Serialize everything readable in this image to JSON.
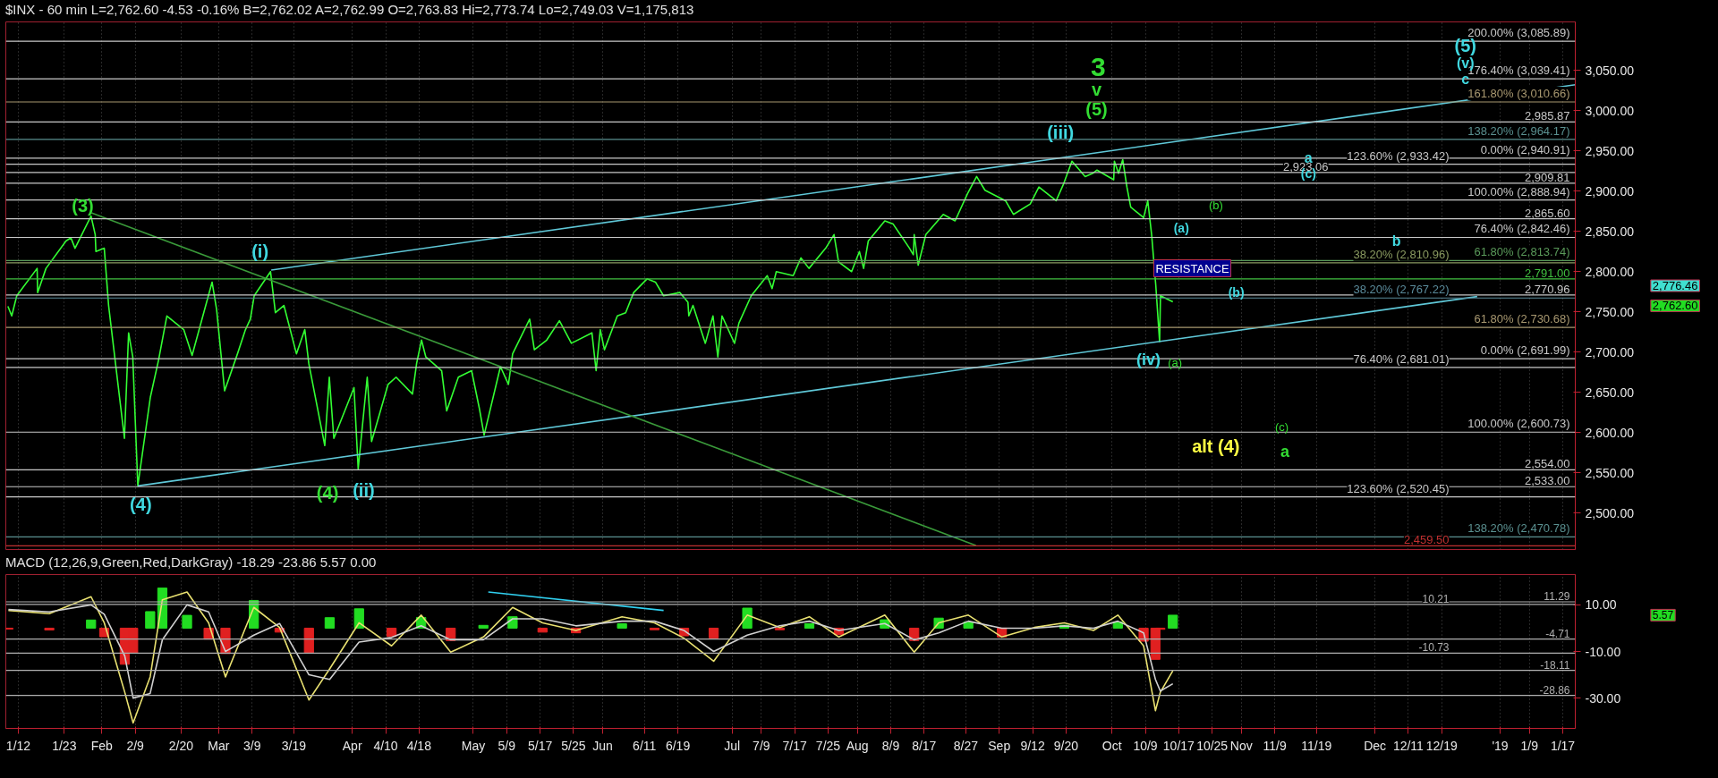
{
  "chart_data": [
    {
      "type": "line",
      "title": "$INX - 60 min  L=2,762.60  -4.53  -0.16%  B=2,762.02  A=2,762.99  O=2,763.83  Hi=2,773.74  Lo=2,749.03  V=1,175,813",
      "xlim": [
        "2018-01-09",
        "2019-01-20"
      ],
      "ylim": [
        2455,
        3110
      ],
      "xticks": [
        {
          "value": "2018-01-12",
          "label": null
        },
        {
          "value": "2018-01-23",
          "label": null
        },
        {
          "value": "2018-02-01",
          "label": null
        },
        {
          "value": "2018-02-09",
          "label": null
        },
        {
          "value": "2018-02-20",
          "label": null
        },
        {
          "value": "2018-03-01",
          "label": null
        },
        {
          "value": "2018-03-09",
          "label": null
        },
        {
          "value": "2018-03-19",
          "label": null
        },
        {
          "value": "2018-04-02",
          "label": null
        },
        {
          "value": "2018-04-10",
          "label": null
        },
        {
          "value": "2018-04-18",
          "label": null
        },
        {
          "value": "2018-05-01",
          "label": null
        },
        {
          "value": "2018-05-09",
          "label": null
        },
        {
          "value": "2018-05-17",
          "label": null
        },
        {
          "value": "2018-05-25",
          "label": null
        },
        {
          "value": "2018-06-01",
          "label": null
        },
        {
          "value": "2018-06-11",
          "label": null
        },
        {
          "value": "2018-06-19",
          "label": null
        },
        {
          "value": "2018-07-02",
          "label": null
        },
        {
          "value": "2018-07-09",
          "label": null
        },
        {
          "value": "2018-07-17",
          "label": null
        },
        {
          "value": "2018-07-25",
          "label": null
        },
        {
          "value": "2018-08-01",
          "label": null
        },
        {
          "value": "2018-08-09",
          "label": null
        },
        {
          "value": "2018-08-17",
          "label": null
        },
        {
          "value": "2018-08-27",
          "label": null
        },
        {
          "value": "2018-09-04",
          "label": null
        },
        {
          "value": "2018-09-12",
          "label": null
        },
        {
          "value": "2018-09-20",
          "label": null
        },
        {
          "value": "2018-10-01",
          "label": null
        },
        {
          "value": "2018-10-09",
          "label": null
        },
        {
          "value": "2018-10-17",
          "label": null
        },
        {
          "value": "2018-10-25",
          "label": null
        },
        {
          "value": "2018-11-01",
          "label": null
        },
        {
          "value": "2018-11-09",
          "label": null
        },
        {
          "value": "2018-11-19",
          "label": null
        },
        {
          "value": "2018-12-03",
          "label": null
        },
        {
          "value": "2018-12-11",
          "label": null
        },
        {
          "value": "2018-12-19",
          "label": null
        },
        {
          "value": "2019-01-02",
          "label": null
        },
        {
          "value": "2019-01-09",
          "label": null
        },
        {
          "value": "2019-01-17",
          "label": null
        }
      ],
      "yticks": [
        {
          "value": 2500,
          "label": "2,500.00"
        },
        {
          "value": 2550,
          "label": "2,550.00"
        },
        {
          "value": 2600,
          "label": "2,600.00"
        },
        {
          "value": 2650,
          "label": "2,650.00"
        },
        {
          "value": 2700,
          "label": "2,700.00"
        },
        {
          "value": 2750,
          "label": "2,750.00"
        },
        {
          "value": 2800,
          "label": "2,800.00"
        },
        {
          "value": 2850,
          "label": "2,850.00"
        },
        {
          "value": 2900,
          "label": "2,900.00"
        },
        {
          "value": 2950,
          "label": "2,950.00"
        },
        {
          "value": 3000,
          "label": "3,000.00"
        },
        {
          "value": 3050,
          "label": "3,050.00"
        }
      ],
      "tick_labels": "y",
      "grid": "x",
      "series": [
        {
          "color": "#33ff33",
          "x": [
            "2018-01-09T12:00",
            "2018-01-10T10:00",
            "2018-01-11T15:00",
            "2018-01-16T12:00",
            "2018-01-16T15:00",
            "2018-01-18T15:00",
            "2018-01-23T10:00",
            "2018-01-24T14:00",
            "2018-01-25T14:00",
            "2018-01-29T10:00",
            "2018-01-30T10:00",
            "2018-01-30T14:00",
            "2018-02-01T14:00",
            "2018-02-02T15:00",
            "2018-02-06T10:00",
            "2018-02-07T10:00",
            "2018-02-08T10:00",
            "2018-02-09T15:00",
            "2018-02-12T15:00",
            "2018-02-14T14:00",
            "2018-02-16T14:00",
            "2018-02-20T15:00",
            "2018-02-22T15:00",
            "2018-02-27T10:00",
            "2018-02-28T12:00",
            "2018-03-02T10:00",
            "2018-03-05T12:00",
            "2018-03-07T10:00",
            "2018-03-08T14:00",
            "2018-03-09T12:00",
            "2018-03-13T10:00",
            "2018-03-14T14:00",
            "2018-03-16T15:00",
            "2018-03-19T15:00",
            "2018-03-21T15:00",
            "2018-03-22T14:00",
            "2018-03-26T10:00",
            "2018-03-27T12:00",
            "2018-03-28T14:00",
            "2018-04-02T10:00",
            "2018-04-03T10:00",
            "2018-04-05T14:00",
            "2018-04-06T15:00",
            "2018-04-10T14:00",
            "2018-04-12T12:00",
            "2018-04-16T10:00",
            "2018-04-17T10:00",
            "2018-04-18T14:00",
            "2018-04-19T15:00",
            "2018-04-23T10:00",
            "2018-04-24T15:00",
            "2018-04-27T10:00",
            "2018-04-30T14:00",
            "2018-05-02T10:00",
            "2018-05-03T14:00",
            "2018-05-07T12:00",
            "2018-05-09T10:00",
            "2018-05-10T10:00",
            "2018-05-14T12:00",
            "2018-05-15T15:00",
            "2018-05-18T14:00",
            "2018-05-21T15:00",
            "2018-05-24T12:00",
            "2018-05-29T10:00",
            "2018-05-30T10:00",
            "2018-05-31T10:00",
            "2018-06-01T10:00",
            "2018-06-04T12:00",
            "2018-06-06T12:00",
            "2018-06-08T10:00",
            "2018-06-11T15:00",
            "2018-06-13T15:00",
            "2018-06-15T14:00",
            "2018-06-19T12:00",
            "2018-06-21T10:00",
            "2018-06-21T15:00",
            "2018-06-22T15:00",
            "2018-06-25T14:00",
            "2018-06-27T10:00",
            "2018-06-28T14:00",
            "2018-06-29T14:00",
            "2018-07-02T14:00",
            "2018-07-03T15:00",
            "2018-07-06T14:00",
            "2018-07-10T10:00",
            "2018-07-11T14:00",
            "2018-07-12T14:00",
            "2018-07-16T15:00",
            "2018-07-18T12:00",
            "2018-07-20T10:00",
            "2018-07-24T10:00",
            "2018-07-26T10:00",
            "2018-07-27T12:00",
            "2018-07-30T15:00",
            "2018-08-01T12:00",
            "2018-08-02T12:00",
            "2018-08-03T15:00",
            "2018-08-07T14:00",
            "2018-08-09T14:00",
            "2018-08-13T12:00",
            "2018-08-14T10:00",
            "2018-08-14T15:00",
            "2018-08-15T14:00",
            "2018-08-17T10:00",
            "2018-08-21T14:00",
            "2018-08-24T10:00",
            "2018-08-27T10:00",
            "2018-08-29T14:00",
            "2018-08-31T14:00",
            "2018-09-05T12:00",
            "2018-09-07T10:00",
            "2018-09-11T10:00",
            "2018-09-13T12:00",
            "2018-09-17T15:00",
            "2018-09-19T10:00",
            "2018-09-21T10:00",
            "2018-09-24T14:00",
            "2018-09-26T10:00",
            "2018-09-27T10:00",
            "2018-10-01T10:00",
            "2018-10-01T14:00",
            "2018-10-02T14:00",
            "2018-10-03T14:00",
            "2018-10-04T14:00",
            "2018-10-05T12:00",
            "2018-10-08T14:00",
            "2018-10-09T14:00",
            "2018-10-10T12:00",
            "2018-10-11T12:00",
            "2018-10-12T10:00",
            "2018-10-12T15:00",
            "2018-10-15T14:00"
          ],
          "values": [
            2757,
            2745,
            2770,
            2804,
            2774,
            2804,
            2838,
            2842,
            2829,
            2869,
            2846,
            2825,
            2829,
            2758,
            2593,
            2724,
            2694,
            2534,
            2644,
            2690,
            2745,
            2728,
            2696,
            2787,
            2753,
            2652,
            2698,
            2728,
            2741,
            2770,
            2800,
            2749,
            2758,
            2698,
            2728,
            2686,
            2584,
            2669,
            2593,
            2656,
            2555,
            2669,
            2589,
            2660,
            2669,
            2648,
            2686,
            2715,
            2694,
            2677,
            2627,
            2669,
            2677,
            2631,
            2597,
            2682,
            2660,
            2698,
            2741,
            2703,
            2715,
            2739,
            2711,
            2724,
            2677,
            2728,
            2703,
            2745,
            2749,
            2774,
            2791,
            2787,
            2770,
            2774,
            2762,
            2745,
            2758,
            2711,
            2745,
            2694,
            2745,
            2711,
            2736,
            2770,
            2795,
            2779,
            2800,
            2795,
            2817,
            2804,
            2829,
            2846,
            2812,
            2800,
            2825,
            2804,
            2838,
            2863,
            2859,
            2829,
            2821,
            2846,
            2808,
            2846,
            2871,
            2863,
            2897,
            2918,
            2901,
            2888,
            2871,
            2884,
            2905,
            2888,
            2909,
            2937,
            2918,
            2922,
            2926,
            2914,
            2937,
            2922,
            2939,
            2905,
            2880,
            2867,
            2888,
            2846,
            2783,
            2713,
            2770,
            2762.6
          ]
        },
        {
          "color": "#5fc8d8",
          "x": [
            "2018-02-09T15:00",
            "2018-12-27T12:00"
          ],
          "values": [
            2534,
            2769
          ]
        },
        {
          "color": "#5fc8d8",
          "x": [
            "2018-03-13T14:00",
            "2019-01-20"
          ],
          "values": [
            2802,
            3032
          ]
        },
        {
          "color": "#3a9a3a",
          "x": [
            "2018-01-29T12:00",
            "2018-08-29T10:00"
          ],
          "values": [
            2873,
            2460
          ]
        }
      ],
      "ref_lines": [
        {
          "axis": "y",
          "value": 3085.89,
          "label": "200.00% (3,085.89)",
          "color": "#c8c8c8"
        },
        {
          "axis": "y",
          "value": 3039.41,
          "label": "176.40% (3,039.41)",
          "color": "#c8c8c8"
        },
        {
          "axis": "y",
          "value": 3010.66,
          "label": "161.80% (3,010.66)",
          "color": "#a89870"
        },
        {
          "axis": "y",
          "value": 2985.87,
          "label": "2,985.87",
          "color": "#c8c8c8"
        },
        {
          "axis": "y",
          "value": 2964.17,
          "label": "138.20% (2,964.17)",
          "color": "#5a9090"
        },
        {
          "axis": "y",
          "value": 2940.91,
          "label": "0.00% (2,940.91)",
          "color": "#c8c8c8"
        },
        {
          "axis": "y",
          "value": 2933.42,
          "label": "123.60% (2,933.42)",
          "color": "#c8c8c8"
        },
        {
          "axis": "y",
          "value": 2923.06,
          "label": "2,923.06",
          "color": "#c8c8c8"
        },
        {
          "axis": "y",
          "value": 2909.81,
          "label": "2,909.81",
          "color": "#c8c8c8"
        },
        {
          "axis": "y",
          "value": 2888.94,
          "label": "100.00% (2,888.94)",
          "color": "#c8c8c8"
        },
        {
          "axis": "y",
          "value": 2865.6,
          "label": "2,865.60",
          "color": "#c8c8c8"
        },
        {
          "axis": "y",
          "value": 2842.46,
          "label": "76.40% (2,842.46)",
          "color": "#c8c8c8"
        },
        {
          "axis": "y",
          "value": 2813.74,
          "label": "61.80% (2,813.74)",
          "color": "#5a9a5a"
        },
        {
          "axis": "y",
          "value": 2810.96,
          "label": "38.20% (2,810.96)",
          "color": "#8a9a60"
        },
        {
          "axis": "y",
          "value": 2791.0,
          "label": "2,791.00",
          "color": "#40c040"
        },
        {
          "axis": "y",
          "value": 2770.96,
          "label": "2,770.96",
          "color": "#c8c8c8"
        },
        {
          "axis": "y",
          "value": 2767.22,
          "label": "38.20% (2,767.22)",
          "color": "#5a8a9a"
        },
        {
          "axis": "y",
          "value": 2730.68,
          "label": "61.80% (2,730.68)",
          "color": "#a89870"
        },
        {
          "axis": "y",
          "value": 2691.99,
          "label": "0.00% (2,691.99)",
          "color": "#c8c8c8"
        },
        {
          "axis": "y",
          "value": 2681.01,
          "label": "76.40% (2,681.01)",
          "color": "#c8c8c8"
        },
        {
          "axis": "y",
          "value": 2600.73,
          "label": "100.00% (2,600.73)",
          "color": "#c8c8c8"
        },
        {
          "axis": "y",
          "value": 2554.0,
          "label": "2,554.00",
          "color": "#c8c8c8"
        },
        {
          "axis": "y",
          "value": 2533.0,
          "label": "2,533.00",
          "color": "#c8c8c8"
        },
        {
          "axis": "y",
          "value": 2520.45,
          "label": "123.60% (2,520.45)",
          "color": "#c8c8c8"
        },
        {
          "axis": "y",
          "value": 2470.78,
          "label": "138.20% (2,470.78)",
          "color": "#5a9090"
        },
        {
          "axis": "y",
          "value": 2459.5,
          "label": "2,459.50",
          "color": "#c03030"
        }
      ],
      "annotations": [
        "(3)",
        "(4)",
        "(i)",
        "(4)",
        "(ii)",
        "(iii)",
        "3",
        "v",
        "(5)",
        "(iv)",
        "(a)",
        "(a)",
        "(b)",
        "(b)",
        "RESISTANCE",
        "a",
        "(c)",
        "b",
        "(c)",
        "a",
        "alt (4)",
        "(5)",
        "(v)",
        "c",
        "2,776.46",
        "2,762.60"
      ]
    },
    {
      "type": "line",
      "title": "MACD (12,26,9,Green,Red,DarkGray)  -18.29  -23.86  5.57  0.00",
      "xlim": [
        "2018-01-09",
        "2019-01-20"
      ],
      "ylim": [
        -43,
        23
      ],
      "xticks": [
        {
          "value": "2018-01-12",
          "label": "1/12"
        },
        {
          "value": "2018-01-23",
          "label": "1/23"
        },
        {
          "value": "2018-02-01",
          "label": "Feb"
        },
        {
          "value": "2018-02-09",
          "label": "2/9"
        },
        {
          "value": "2018-02-20",
          "label": "2/20"
        },
        {
          "value": "2018-03-01",
          "label": "Mar"
        },
        {
          "value": "2018-03-09",
          "label": "3/9"
        },
        {
          "value": "2018-03-19",
          "label": "3/19"
        },
        {
          "value": "2018-04-02",
          "label": "Apr"
        },
        {
          "value": "2018-04-10",
          "label": "4/10"
        },
        {
          "value": "2018-04-18",
          "label": "4/18"
        },
        {
          "value": "2018-05-01",
          "label": "May"
        },
        {
          "value": "2018-05-09",
          "label": "5/9"
        },
        {
          "value": "2018-05-17",
          "label": "5/17"
        },
        {
          "value": "2018-05-25",
          "label": "5/25"
        },
        {
          "value": "2018-06-01",
          "label": "Jun"
        },
        {
          "value": "2018-06-11",
          "label": "6/11"
        },
        {
          "value": "2018-06-19",
          "label": "6/19"
        },
        {
          "value": "2018-07-02",
          "label": "Jul"
        },
        {
          "value": "2018-07-09",
          "label": "7/9"
        },
        {
          "value": "2018-07-17",
          "label": "7/17"
        },
        {
          "value": "2018-07-25",
          "label": "7/25"
        },
        {
          "value": "2018-08-01",
          "label": "Aug"
        },
        {
          "value": "2018-08-09",
          "label": "8/9"
        },
        {
          "value": "2018-08-17",
          "label": "8/17"
        },
        {
          "value": "2018-08-27",
          "label": "8/27"
        },
        {
          "value": "2018-09-04",
          "label": "Sep"
        },
        {
          "value": "2018-09-12",
          "label": "9/12"
        },
        {
          "value": "2018-09-20",
          "label": "9/20"
        },
        {
          "value": "2018-10-01",
          "label": "Oct"
        },
        {
          "value": "2018-10-09",
          "label": "10/9"
        },
        {
          "value": "2018-10-17",
          "label": "10/17"
        },
        {
          "value": "2018-10-25",
          "label": "10/25"
        },
        {
          "value": "2018-11-01",
          "label": "Nov"
        },
        {
          "value": "2018-11-09",
          "label": "11/9"
        },
        {
          "value": "2018-11-19",
          "label": "11/19"
        },
        {
          "value": "2018-12-03",
          "label": "Dec"
        },
        {
          "value": "2018-12-11",
          "label": "12/11"
        },
        {
          "value": "2018-12-19",
          "label": "12/19"
        },
        {
          "value": "2019-01-02",
          "label": "'19"
        },
        {
          "value": "2019-01-09",
          "label": "1/9"
        },
        {
          "value": "2019-01-17",
          "label": "1/17"
        }
      ],
      "yticks": [
        {
          "value": 10,
          "label": "10.00"
        },
        {
          "value": -10,
          "label": "-10.00"
        },
        {
          "value": -30,
          "label": "-30.00"
        }
      ],
      "grid": "x",
      "series": [
        {
          "type": "bar",
          "x": [
            "2018-01-09T15:00",
            "2018-01-19T10:00",
            "2018-01-29T10:00",
            "2018-02-01T14:00",
            "2018-02-06T12:00",
            "2018-02-08T12:00",
            "2018-02-12T14:00",
            "2018-02-15T12:00",
            "2018-02-21T10:00",
            "2018-02-26T14:00",
            "2018-03-02T15:00",
            "2018-03-09T10:00",
            "2018-03-15T14:00",
            "2018-03-22T15:00",
            "2018-03-27T14:00",
            "2018-04-03T15:00",
            "2018-04-11T10:00",
            "2018-04-18T12:00",
            "2018-04-25T14:00",
            "2018-05-03T10:00",
            "2018-05-10T10:00",
            "2018-05-17T14:00",
            "2018-05-25T14:00",
            "2018-06-05T15:00",
            "2018-06-13T10:00",
            "2018-06-20T12:00",
            "2018-06-27T14:00",
            "2018-07-05T15:00",
            "2018-07-13T10:00",
            "2018-07-20T12:00",
            "2018-07-27T14:00",
            "2018-08-07T14:00",
            "2018-08-14T15:00",
            "2018-08-20T12:00",
            "2018-08-27T14:00",
            "2018-09-04T15:00",
            "2018-09-12T10:00",
            "2018-09-19T14:00",
            "2018-09-26T14:00",
            "2018-10-02T10:00",
            "2018-10-08T14:00",
            "2018-10-11T10:00",
            "2018-10-12T14:00",
            "2018-10-15T14:00"
          ],
          "values": [
            -0.4,
            -0.8,
            3.5,
            -3.7,
            -15.5,
            -10.7,
            7.1,
            17.2,
            5.5,
            -4.7,
            -10.9,
            11.9,
            -1.7,
            -10.8,
            4.5,
            8.3,
            -3.6,
            4.6,
            -5.3,
            1.2,
            4.9,
            -1.7,
            -2.0,
            1.9,
            -0.7,
            -3.3,
            -4.2,
            8.6,
            -0.7,
            1.9,
            -2.8,
            3.6,
            -5.3,
            4.3,
            2.6,
            -3.8,
            null,
            1.3,
            null,
            2.6,
            -5.6,
            -13.4,
            -0.5,
            5.57
          ],
          "colors": [
            "#e02020",
            "#e02020",
            "#22dd22",
            "#e02020",
            "#e02020",
            "#e02020",
            "#22dd22",
            "#22dd22",
            "#22dd22",
            "#e02020",
            "#e02020",
            "#22dd22",
            "#e02020",
            "#e02020",
            "#22dd22",
            "#22dd22",
            "#e02020",
            "#22dd22",
            "#e02020",
            "#22dd22",
            "#22dd22",
            "#e02020",
            "#e02020",
            "#22dd22",
            "#e02020",
            "#e02020",
            "#e02020",
            "#22dd22",
            "#e02020",
            "#22dd22",
            "#e02020",
            "#22dd22",
            "#e02020",
            "#22dd22",
            "#22dd22",
            "#e02020",
            "#22dd22",
            "#22dd22",
            "#e02020",
            "#22dd22",
            "#e02020",
            "#e02020",
            "#e02020",
            "#22dd22"
          ]
        },
        {
          "color": "#e8e070",
          "x": [
            "2018-01-09T15:00",
            "2018-01-19T10:00",
            "2018-01-29T10:00",
            "2018-02-01T14:00",
            "2018-02-06T12:00",
            "2018-02-08T12:00",
            "2018-02-12T14:00",
            "2018-02-15T12:00",
            "2018-02-21T10:00",
            "2018-02-26T14:00",
            "2018-03-02T15:00",
            "2018-03-09T10:00",
            "2018-03-15T14:00",
            "2018-03-22T15:00",
            "2018-03-27T14:00",
            "2018-04-03T15:00",
            "2018-04-11T10:00",
            "2018-04-18T12:00",
            "2018-04-25T14:00",
            "2018-05-03T10:00",
            "2018-05-10T10:00",
            "2018-05-17T14:00",
            "2018-05-25T14:00",
            "2018-06-05T15:00",
            "2018-06-13T10:00",
            "2018-06-20T12:00",
            "2018-06-27T14:00",
            "2018-07-05T15:00",
            "2018-07-13T10:00",
            "2018-07-20T12:00",
            "2018-07-27T14:00",
            "2018-08-07T14:00",
            "2018-08-14T15:00",
            "2018-08-20T12:00",
            "2018-08-27T14:00",
            "2018-09-04T15:00",
            "2018-09-12T10:00",
            "2018-09-19T14:00",
            "2018-09-26T14:00",
            "2018-10-02T10:00",
            "2018-10-08T14:00",
            "2018-10-11T10:00",
            "2018-10-12T14:00",
            "2018-10-15T14:00"
          ],
          "values": [
            7.6,
            6.2,
            13.5,
            2.3,
            -27.5,
            -40.7,
            -20.9,
            12.2,
            15.5,
            2.3,
            -20.9,
            8.9,
            0.3,
            -30.8,
            -17.5,
            2.3,
            -7.6,
            5.6,
            -10.3,
            -3.8,
            8.9,
            2.3,
            -1.0,
            4.9,
            2.3,
            -4.3,
            -14.2,
            5.6,
            0.3,
            4.9,
            -3.8,
            5.6,
            -10.3,
            2.3,
            5.6,
            -3.8,
            0.3,
            2.3,
            -1.0,
            5.6,
            -7.6,
            -35.4,
            -27.5,
            -18.29
          ]
        },
        {
          "color": "#d0d0d0",
          "x": [
            "2018-01-09T15:00",
            "2018-01-19T10:00",
            "2018-01-29T10:00",
            "2018-02-01T14:00",
            "2018-02-06T12:00",
            "2018-02-08T12:00",
            "2018-02-12T14:00",
            "2018-02-15T12:00",
            "2018-02-21T10:00",
            "2018-02-26T14:00",
            "2018-03-02T15:00",
            "2018-03-09T10:00",
            "2018-03-15T14:00",
            "2018-03-22T15:00",
            "2018-03-27T14:00",
            "2018-04-03T15:00",
            "2018-04-11T10:00",
            "2018-04-18T12:00",
            "2018-04-25T14:00",
            "2018-05-03T10:00",
            "2018-05-10T10:00",
            "2018-05-17T14:00",
            "2018-05-25T14:00",
            "2018-06-05T15:00",
            "2018-06-13T10:00",
            "2018-06-20T12:00",
            "2018-06-27T14:00",
            "2018-07-05T15:00",
            "2018-07-13T10:00",
            "2018-07-20T12:00",
            "2018-07-27T14:00",
            "2018-08-07T14:00",
            "2018-08-14T15:00",
            "2018-08-20T12:00",
            "2018-08-27T14:00",
            "2018-09-04T15:00",
            "2018-09-12T10:00",
            "2018-09-19T14:00",
            "2018-09-26T14:00",
            "2018-10-02T10:00",
            "2018-10-08T14:00",
            "2018-10-11T10:00",
            "2018-10-12T14:00",
            "2018-10-15T14:00"
          ],
          "values": [
            8.0,
            7.0,
            10.0,
            6.0,
            -12.0,
            -30.0,
            -28.0,
            -5.0,
            10.0,
            7.0,
            -10.0,
            -3.0,
            2.0,
            -20.0,
            -22.0,
            -6.0,
            -4.0,
            1.0,
            -5.0,
            -5.0,
            4.0,
            4.0,
            1.0,
            3.0,
            3.0,
            -1.0,
            -10.0,
            -3.0,
            1.0,
            3.0,
            -1.0,
            2.0,
            -5.0,
            -2.0,
            3.0,
            0.0,
            0.0,
            1.0,
            0.0,
            3.0,
            -2.0,
            -22.0,
            -27.0,
            -23.86
          ]
        },
        {
          "color": "#30d0f0",
          "x": [
            "2018-05-04T14:00",
            "2018-06-15T14:00"
          ],
          "values": [
            15.5,
            7.6
          ]
        }
      ],
      "ref_lines": [
        {
          "axis": "y",
          "value": 11.29,
          "label": "11.29",
          "color": "#b0b0b0"
        },
        {
          "axis": "y",
          "value": 10.21,
          "label": "10.21",
          "color": "#b0b0b0"
        },
        {
          "axis": "y",
          "value": -4.71,
          "label": "-4.71",
          "color": "#b0b0b0"
        },
        {
          "axis": "y",
          "value": -10.73,
          "label": "-10.73",
          "color": "#b0b0b0"
        },
        {
          "axis": "y",
          "value": -18.11,
          "label": "-18.11",
          "color": "#b0b0b0"
        },
        {
          "axis": "y",
          "value": -28.86,
          "label": "-28.86",
          "color": "#b0b0b0"
        }
      ],
      "annotations": [
        "5.57"
      ]
    }
  ]
}
